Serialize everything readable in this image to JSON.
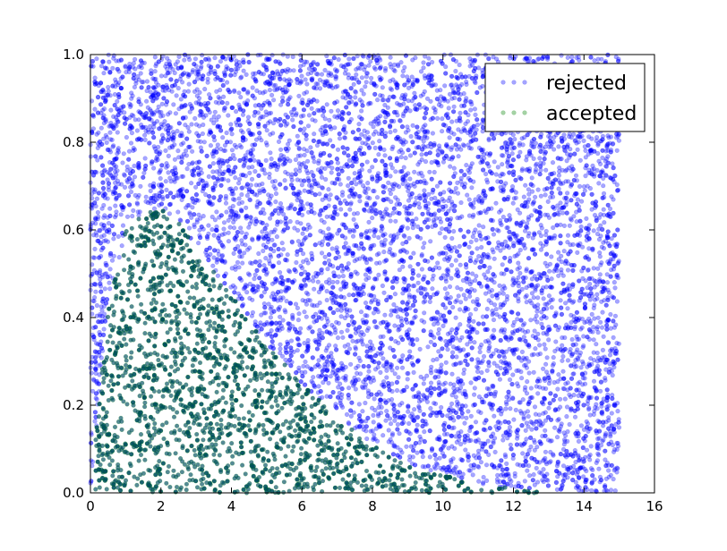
{
  "chart_data": {
    "type": "scatter",
    "title": "",
    "xlabel": "",
    "ylabel": "",
    "xlim": [
      0,
      16
    ],
    "ylim": [
      0,
      1.0
    ],
    "x_ticks": [
      0,
      2,
      4,
      6,
      8,
      10,
      12,
      14,
      16
    ],
    "x_tick_labels": [
      "0",
      "2",
      "4",
      "6",
      "8",
      "10",
      "12",
      "14",
      "16"
    ],
    "y_ticks": [
      0.0,
      0.2,
      0.4,
      0.6,
      0.8,
      1.0
    ],
    "y_tick_labels": [
      "0.0",
      "0.2",
      "0.4",
      "0.6",
      "0.8",
      "1.0"
    ],
    "grid": false,
    "legend_position": "top-right",
    "series": [
      {
        "name": "rejected",
        "color": "#0000ff",
        "alpha": 0.35,
        "point_count": 8000,
        "distribution": "uniform samples over x in [0, 15], y in [0, 1] lying above the acceptance curve"
      },
      {
        "name": "accepted",
        "color": "#008000",
        "overlay_color": "#0000ff",
        "alpha": 0.35,
        "point_count": 2200,
        "distribution": "uniform samples lying below the acceptance curve, peak near x=2 at y=0.65, reaching 0 near x=13"
      }
    ],
    "acceptance_curve": {
      "x": [
        0,
        0.5,
        1,
        1.5,
        2,
        2.5,
        3,
        4,
        5,
        6,
        7,
        8,
        9,
        10,
        11,
        12,
        13,
        15
      ],
      "y": [
        0,
        0.42,
        0.6,
        0.64,
        0.65,
        0.62,
        0.56,
        0.45,
        0.34,
        0.25,
        0.17,
        0.11,
        0.07,
        0.04,
        0.02,
        0.01,
        0,
        0
      ]
    }
  }
}
